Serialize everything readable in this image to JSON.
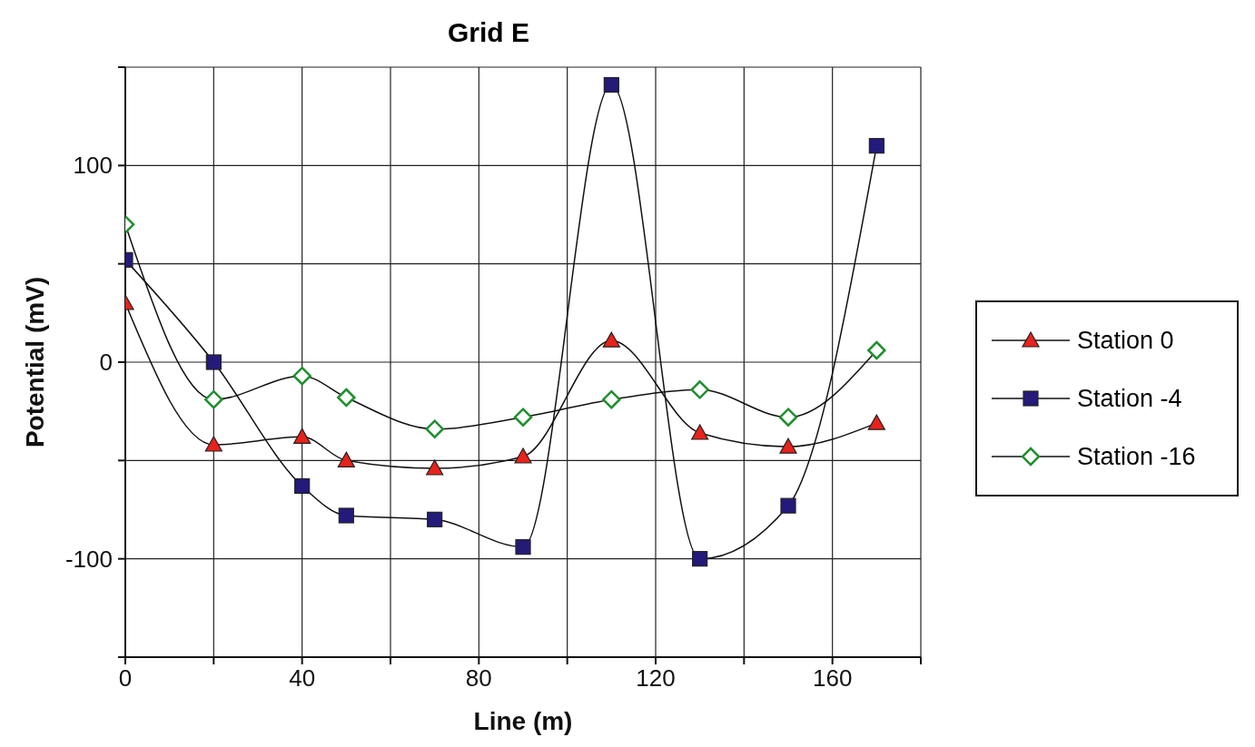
{
  "chart_data": {
    "type": "line",
    "title": "Grid E",
    "xlabel": "Line (m)",
    "ylabel": "Potential (mV)",
    "x": [
      0,
      20,
      40,
      50,
      70,
      90,
      110,
      130,
      150,
      170
    ],
    "series": [
      {
        "name": "Station 0",
        "color": "#e8221c",
        "marker": "triangle",
        "values": [
          30,
          -42,
          -38,
          -50,
          -54,
          -48,
          11,
          -36,
          -43,
          -31
        ]
      },
      {
        "name": "Station -4",
        "color": "#231a7a",
        "marker": "square",
        "values": [
          52,
          0,
          -63,
          -78,
          -80,
          -94,
          141,
          -100,
          -73,
          110
        ]
      },
      {
        "name": "Station -16",
        "color": "#1f8f2e",
        "marker": "diamond",
        "values": [
          70,
          -19,
          -7,
          -18,
          -34,
          -28,
          -19,
          -14,
          -28,
          6
        ]
      }
    ],
    "xlim": [
      0,
      180
    ],
    "xticks": [
      0,
      {
        "value": 20,
        "label": null
      },
      40,
      {
        "value": 60,
        "label": null
      },
      80,
      {
        "value": 100,
        "label": null
      },
      120,
      {
        "value": 140,
        "label": null
      },
      160,
      {
        "value": 180,
        "label": null
      }
    ],
    "ylim": [
      -150,
      150
    ],
    "yticks": [
      {
        "value": -150,
        "label": null
      },
      -100,
      {
        "value": -50,
        "label": null
      },
      0,
      {
        "value": 50,
        "label": null
      },
      100,
      {
        "value": 150,
        "label": null
      }
    ],
    "grid": true,
    "legend": "right",
    "line_style": "solid"
  }
}
